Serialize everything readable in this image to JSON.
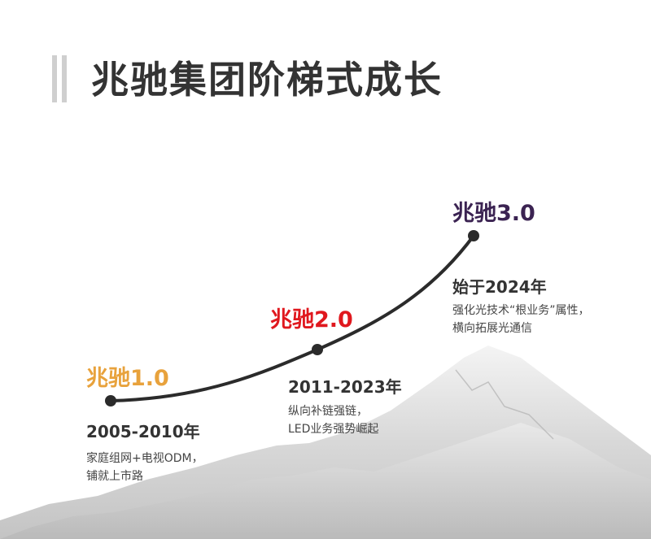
{
  "title": "兆驰集团阶梯式成长",
  "colors": {
    "stage1": "#e8a23c",
    "stage2": "#e0181e",
    "stage3": "#3b2352",
    "curve": "#2b2b2b"
  },
  "stages": [
    {
      "label": "兆驰1.0",
      "years": "2005-2010年",
      "desc": [
        "家庭组网+电视ODM，",
        "铺就上市路"
      ]
    },
    {
      "label": "兆驰2.0",
      "years": "2011-2023年",
      "desc": [
        "纵向补链强链，",
        "LED业务强势崛起"
      ]
    },
    {
      "label": "兆驰3.0",
      "years": "始于2024年",
      "desc": [
        "强化光技术“根业务”属性，",
        "横向拓展光通信"
      ]
    }
  ]
}
